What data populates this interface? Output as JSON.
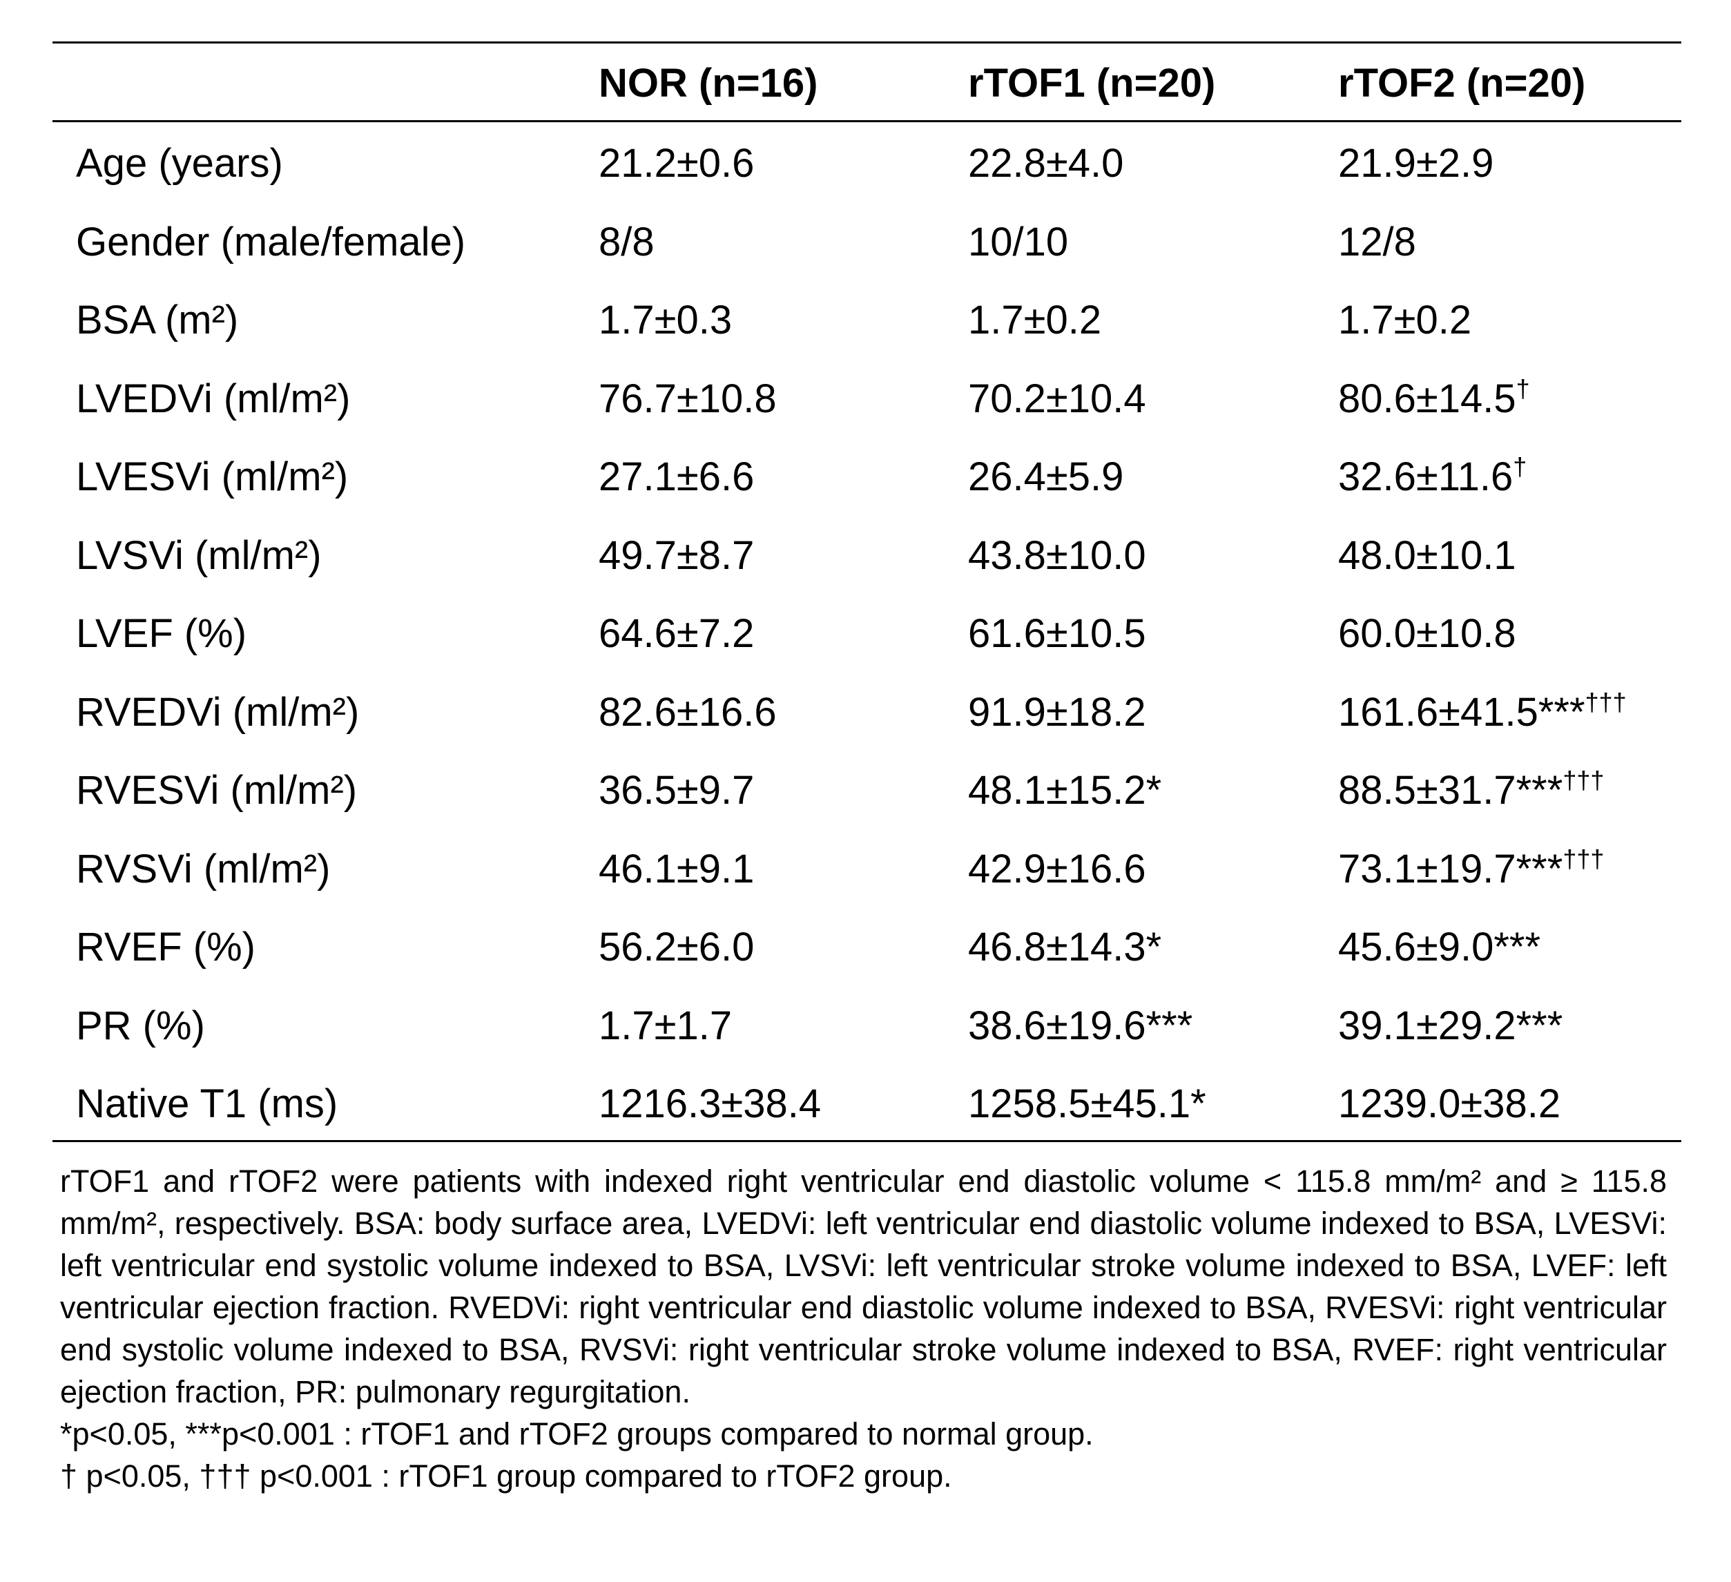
{
  "table": {
    "columns": [
      "NOR (n=16)",
      "rTOF1 (n=20)",
      "rTOF2 (n=20)"
    ],
    "rows": [
      {
        "label": "Age (years)",
        "cells": [
          "21.2±0.6",
          "22.8±4.0",
          "21.9±2.9"
        ]
      },
      {
        "label": "Gender (male/female)",
        "cells": [
          "8/8",
          "10/10",
          "12/8"
        ]
      },
      {
        "label": "BSA (m²)",
        "cells": [
          "1.7±0.3",
          "1.7±0.2",
          "1.7±0.2"
        ]
      },
      {
        "label": "LVEDVi (ml/m²)",
        "cells": [
          "76.7±10.8",
          "70.2±10.4",
          "80.6±14.5†"
        ]
      },
      {
        "label": "LVESVi (ml/m²)",
        "cells": [
          "27.1±6.6",
          "26.4±5.9",
          "32.6±11.6†"
        ]
      },
      {
        "label": "LVSVi (ml/m²)",
        "cells": [
          "49.7±8.7",
          "43.8±10.0",
          "48.0±10.1"
        ]
      },
      {
        "label": "LVEF (%)",
        "cells": [
          "64.6±7.2",
          "61.6±10.5",
          "60.0±10.8"
        ]
      },
      {
        "label": "RVEDVi (ml/m²)",
        "cells": [
          "82.6±16.6",
          "91.9±18.2",
          "161.6±41.5***†††"
        ]
      },
      {
        "label": "RVESVi (ml/m²)",
        "cells": [
          "36.5±9.7",
          "48.1±15.2*",
          "88.5±31.7***†††"
        ]
      },
      {
        "label": "RVSVi (ml/m²)",
        "cells": [
          "46.1±9.1",
          "42.9±16.6",
          "73.1±19.7***†††"
        ]
      },
      {
        "label": "RVEF (%)",
        "cells": [
          "56.2±6.0",
          "46.8±14.3*",
          "45.6±9.0***"
        ]
      },
      {
        "label": "PR (%)",
        "cells": [
          "1.7±1.7",
          "38.6±19.6***",
          "39.1±29.2***"
        ]
      },
      {
        "label": "Native T1 (ms)",
        "cells": [
          "1216.3±38.4",
          "1258.5±45.1*",
          "1239.0±38.2"
        ]
      }
    ]
  },
  "notes": [
    "rTOF1 and rTOF2 were patients with indexed right ventricular end diastolic volume < 115.8 mm/m² and ≥ 115.8 mm/m², respectively. BSA: body surface area, LVEDVi: left ventricular end diastolic volume indexed to BSA, LVESVi: left  ventricular end systolic volume indexed to BSA, LVSVi: left ventricular stroke volume indexed to BSA, LVEF: left ventricular ejection fraction. RVEDVi: right ventricular end diastolic volume indexed to BSA, RVESVi: right  ventricular end systolic volume indexed to BSA, RVSVi: right ventricular stroke volume indexed to BSA, RVEF: right ventricular ejection fraction, PR: pulmonary regurgitation.",
    "*p<0.05, ***p<0.001 : rTOF1 and rTOF2 groups compared to normal group.",
    "† p<0.05, ††† p<0.001 : rTOF1 group compared to rTOF2 group."
  ]
}
